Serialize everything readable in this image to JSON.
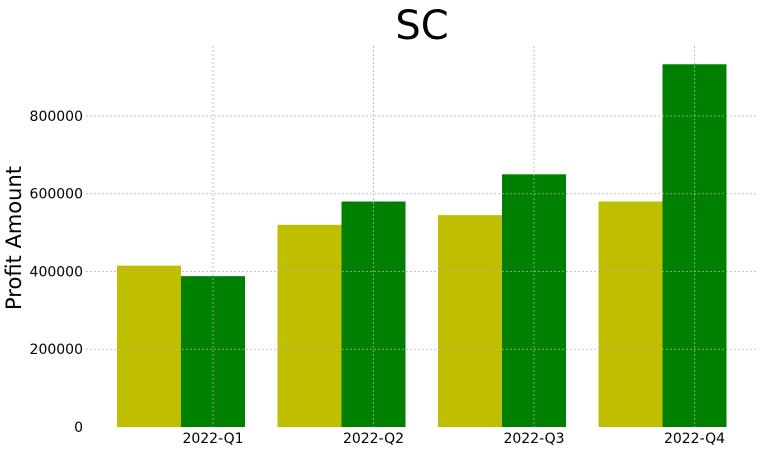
{
  "chart_data": {
    "type": "bar",
    "title": "SC",
    "xlabel": "",
    "ylabel": "Profit Amount",
    "categories": [
      "2022-Q1",
      "2022-Q2",
      "2022-Q3",
      "2022-Q4"
    ],
    "series": [
      {
        "color": "#bfbf00",
        "values": [
          415000,
          520000,
          545000,
          580000
        ]
      },
      {
        "color": "#008000",
        "values": [
          388000,
          580000,
          650000,
          933000
        ]
      }
    ],
    "yticks": [
      0,
      200000,
      400000,
      600000,
      800000
    ],
    "ytick_labels": [
      "0",
      "200000",
      "400000",
      "600000",
      "800000"
    ],
    "ylim": [
      0,
      980000
    ],
    "grid": true,
    "legend": "none"
  }
}
